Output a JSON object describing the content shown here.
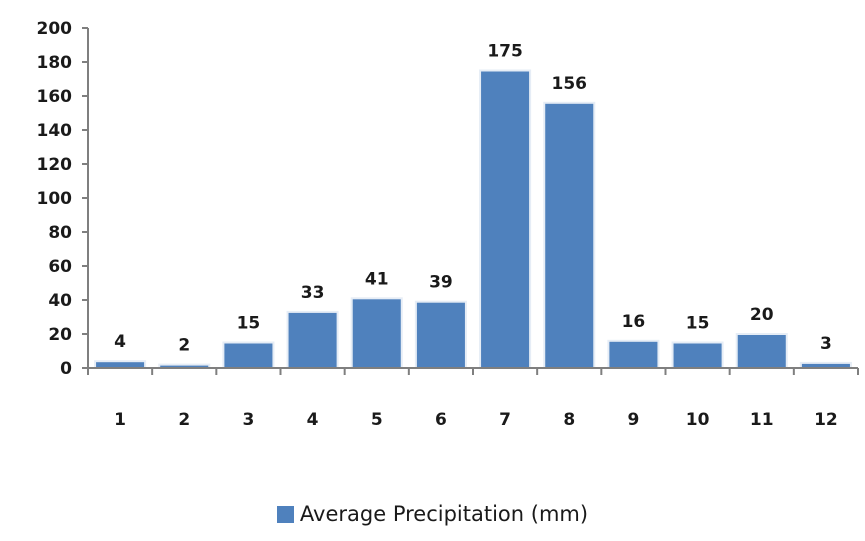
{
  "chart_data": {
    "type": "bar",
    "categories": [
      "1",
      "2",
      "3",
      "4",
      "5",
      "6",
      "7",
      "8",
      "9",
      "10",
      "11",
      "12"
    ],
    "series": [
      {
        "name": "Average Precipitation (mm)",
        "values": [
          4,
          2,
          15,
          33,
          41,
          39,
          175,
          156,
          16,
          15,
          20,
          3
        ],
        "color": "#4f81bd"
      }
    ],
    "data_labels": [
      "4",
      "2",
      "15",
      "33",
      "41",
      "39",
      "175",
      "156",
      "16",
      "15",
      "20",
      "3"
    ],
    "yticks": [
      "0",
      "20",
      "40",
      "60",
      "80",
      "100",
      "120",
      "140",
      "160",
      "180",
      "200"
    ],
    "ylim": [
      0,
      200
    ],
    "grid": false,
    "legend_position": "bottom"
  }
}
